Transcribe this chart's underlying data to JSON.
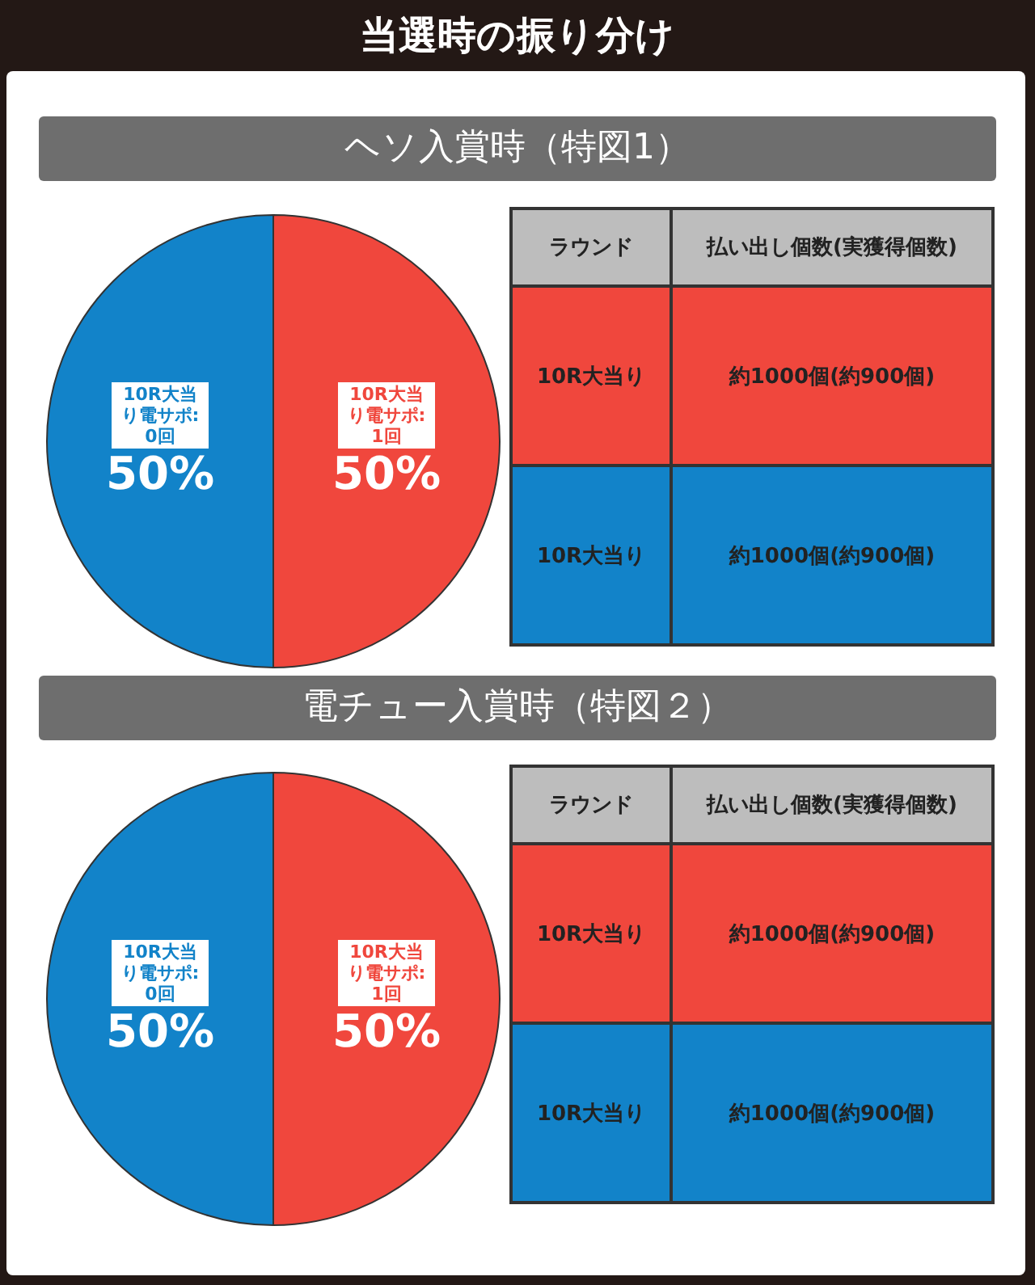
{
  "chart_data": [
    {
      "type": "pie",
      "title": "当選時の振り分け",
      "subtitle": "ヘソ入賞時（特図1）",
      "categories": [
        "10R大当り電サポ:1回",
        "10R大当り電サポ:0回"
      ],
      "values": [
        50,
        50
      ],
      "value_labels": [
        "50%",
        "50%"
      ],
      "colors": [
        "#f0473d",
        "#1283c9"
      ]
    },
    {
      "type": "other",
      "xlabel": "ラウンド",
      "ylabel": "払い出し個数(実獲得個数)",
      "categories": [
        "10R大当り",
        "10R大当り"
      ],
      "annotations": [
        "約1000個(約900個)",
        "約1000個(約900個)"
      ],
      "colors": [
        "#f0473d",
        "#1283c9"
      ]
    },
    {
      "type": "pie",
      "title": "電チュー入賞時（特図２）",
      "categories": [
        "10R大当り電サポ:1回",
        "10R大当り電サポ:0回"
      ],
      "values": [
        50,
        50
      ],
      "value_labels": [
        "50%",
        "50%"
      ],
      "colors": [
        "#f0473d",
        "#1283c9"
      ]
    },
    {
      "type": "other",
      "xlabel": "ラウンド",
      "ylabel": "払い出し個数(実獲得個数)",
      "categories": [
        "10R大当り",
        "10R大当り"
      ],
      "annotations": [
        "約1000個(約900個)",
        "約1000個(約900個)"
      ],
      "colors": [
        "#f0473d",
        "#1283c9"
      ]
    }
  ]
}
